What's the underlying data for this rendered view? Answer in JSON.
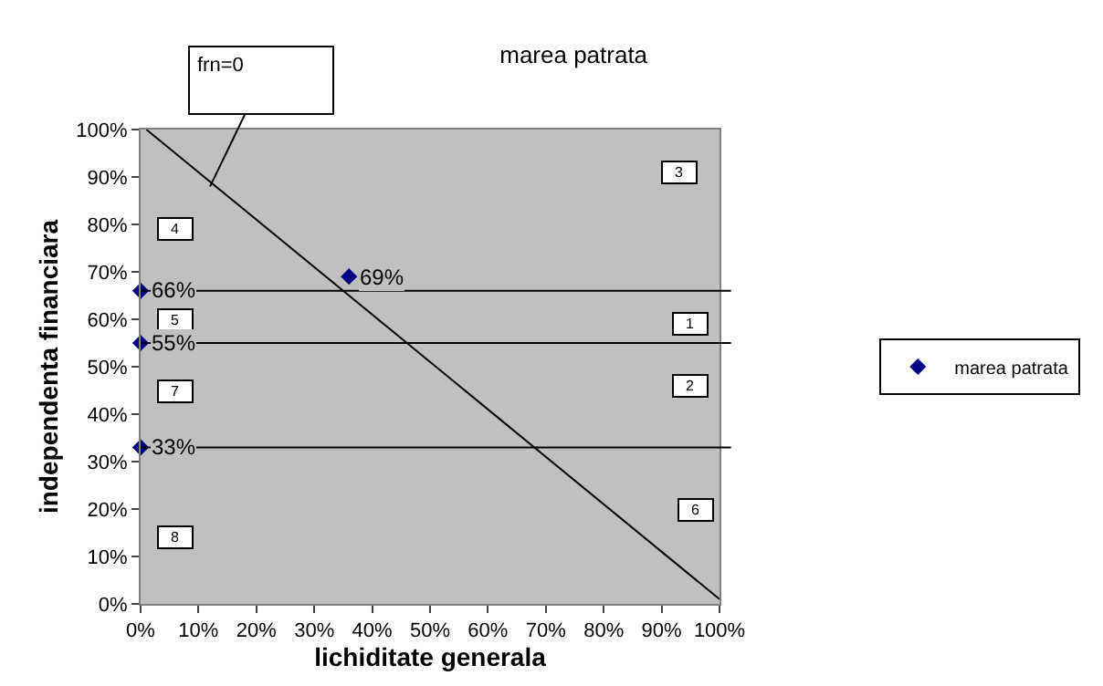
{
  "chart_data": {
    "type": "scatter",
    "title": "marea patrata",
    "xlabel": "lichiditate generala",
    "ylabel": "independenta financiara",
    "xlim": [
      0,
      100
    ],
    "ylim": [
      0,
      100
    ],
    "xticks": [
      {
        "value": 0,
        "label": "0%"
      },
      {
        "value": 10,
        "label": "10%"
      },
      {
        "value": 20,
        "label": "20%"
      },
      {
        "value": 30,
        "label": "30%"
      },
      {
        "value": 40,
        "label": "40%"
      },
      {
        "value": 50,
        "label": "50%"
      },
      {
        "value": 60,
        "label": "60%"
      },
      {
        "value": 70,
        "label": "70%"
      },
      {
        "value": 80,
        "label": "80%"
      },
      {
        "value": 90,
        "label": "90%"
      },
      {
        "value": 100,
        "label": "100%"
      }
    ],
    "yticks": [
      {
        "value": 0,
        "label": "0%"
      },
      {
        "value": 10,
        "label": "10%"
      },
      {
        "value": 20,
        "label": "20%"
      },
      {
        "value": 30,
        "label": "30%"
      },
      {
        "value": 40,
        "label": "40%"
      },
      {
        "value": 50,
        "label": "50%"
      },
      {
        "value": 60,
        "label": "60%"
      },
      {
        "value": 70,
        "label": "70%"
      },
      {
        "value": 80,
        "label": "80%"
      },
      {
        "value": 90,
        "label": "90%"
      },
      {
        "value": 100,
        "label": "100%"
      }
    ],
    "series": [
      {
        "name": "marea patrata",
        "type": "scatter",
        "color": "#000080",
        "marker": "diamond",
        "x": [
          0,
          0,
          0,
          36
        ],
        "values": [
          66,
          55,
          33,
          69
        ],
        "value_labels": [
          "66%",
          "55%",
          "33%",
          "69%"
        ]
      },
      {
        "type": "line",
        "color": "#000000",
        "x": [
          1,
          100
        ],
        "values": [
          100,
          1
        ]
      }
    ],
    "ref_lines": [
      {
        "axis": "y",
        "value": 66,
        "color": "#000000"
      },
      {
        "axis": "y",
        "value": 55,
        "color": "#000000"
      },
      {
        "axis": "y",
        "value": 33,
        "color": "#000000"
      }
    ],
    "annotations": [
      "frn=0",
      {
        "text": "1",
        "x": 95,
        "y": 59
      },
      {
        "text": "2",
        "x": 95,
        "y": 46
      },
      {
        "text": "3",
        "x": 93,
        "y": 91
      },
      {
        "text": "4",
        "x": 6,
        "y": 79
      },
      {
        "text": "5",
        "x": 6,
        "y": 60
      },
      {
        "text": "6",
        "x": 96,
        "y": 20
      },
      {
        "text": "7",
        "x": 6,
        "y": 45
      },
      {
        "text": "8",
        "x": 6,
        "y": 14
      }
    ],
    "grid": false,
    "legend": "right"
  }
}
